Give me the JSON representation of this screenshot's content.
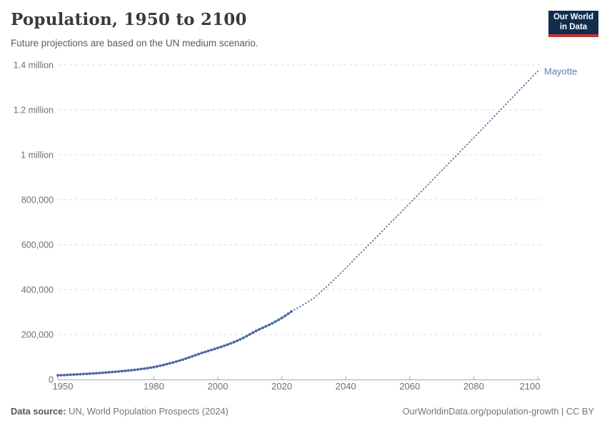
{
  "header": {
    "title": "Population, 1950 to 2100",
    "subtitle": "Future projections are based on the UN medium scenario.",
    "logo": {
      "line1": "Our World",
      "line2": "in Data"
    }
  },
  "footer": {
    "source_label": "Data source:",
    "source_text": "UN, World Population Prospects (2024)",
    "credit": "OurWorldinData.org/population-growth | CC BY"
  },
  "chart_data": {
    "type": "line",
    "title": "Population, 1950 to 2100",
    "subtitle": "Future projections are based on the UN medium scenario.",
    "entity": "Mayotte",
    "xlabel": "",
    "ylabel": "",
    "xlim": [
      1950,
      2100
    ],
    "ylim": [
      0,
      1400000
    ],
    "grid": "dashed-horizontal",
    "legend_position": "end-of-line-label",
    "colors": {
      "line": "#4c6aa0",
      "label": "#5b7db5",
      "grid": "#dedede",
      "axis": "#a9a9a9",
      "axis_text": "#707070"
    },
    "x_axis": {
      "ticks": [
        1950,
        1980,
        2000,
        2020,
        2040,
        2060,
        2080,
        2100
      ]
    },
    "y_axis": {
      "ticks": [
        {
          "value": 0,
          "label": "0"
        },
        {
          "value": 200000,
          "label": "200,000"
        },
        {
          "value": 400000,
          "label": "400,000"
        },
        {
          "value": 600000,
          "label": "600,000"
        },
        {
          "value": 800000,
          "label": "800,000"
        },
        {
          "value": 1000000,
          "label": "1 million"
        },
        {
          "value": 1200000,
          "label": "1.2 million"
        },
        {
          "value": 1400000,
          "label": "1.4 million"
        }
      ]
    },
    "end_label": {
      "text": "Mayotte",
      "value": 1372000
    },
    "series": [
      {
        "name": "Mayotte (observed)",
        "style": "solid",
        "markers": true,
        "points": [
          [
            1950,
            18500
          ],
          [
            1951,
            19100
          ],
          [
            1952,
            19800
          ],
          [
            1953,
            20500
          ],
          [
            1954,
            21200
          ],
          [
            1955,
            22000
          ],
          [
            1956,
            22700
          ],
          [
            1957,
            23500
          ],
          [
            1958,
            24300
          ],
          [
            1959,
            25100
          ],
          [
            1960,
            26000
          ],
          [
            1961,
            26900
          ],
          [
            1962,
            27900
          ],
          [
            1963,
            28900
          ],
          [
            1964,
            29900
          ],
          [
            1965,
            31000
          ],
          [
            1966,
            32100
          ],
          [
            1967,
            33300
          ],
          [
            1968,
            34500
          ],
          [
            1969,
            35700
          ],
          [
            1970,
            37000
          ],
          [
            1971,
            38400
          ],
          [
            1972,
            39800
          ],
          [
            1973,
            41300
          ],
          [
            1974,
            42900
          ],
          [
            1975,
            44500
          ],
          [
            1976,
            46400
          ],
          [
            1977,
            48400
          ],
          [
            1978,
            50500
          ],
          [
            1979,
            52700
          ],
          [
            1980,
            55000
          ],
          [
            1981,
            58000
          ],
          [
            1982,
            61200
          ],
          [
            1983,
            64600
          ],
          [
            1984,
            68200
          ],
          [
            1985,
            72000
          ],
          [
            1986,
            75800
          ],
          [
            1987,
            79800
          ],
          [
            1988,
            84000
          ],
          [
            1989,
            88400
          ],
          [
            1990,
            93000
          ],
          [
            1991,
            97800
          ],
          [
            1992,
            102800
          ],
          [
            1993,
            107900
          ],
          [
            1994,
            113000
          ],
          [
            1995,
            118000
          ],
          [
            1996,
            122500
          ],
          [
            1997,
            127000
          ],
          [
            1998,
            131500
          ],
          [
            1999,
            136000
          ],
          [
            2000,
            140500
          ],
          [
            2001,
            145000
          ],
          [
            2002,
            150000
          ],
          [
            2003,
            155000
          ],
          [
            2004,
            160500
          ],
          [
            2005,
            166000
          ],
          [
            2006,
            172000
          ],
          [
            2007,
            178500
          ],
          [
            2008,
            185500
          ],
          [
            2009,
            193000
          ],
          [
            2010,
            201000
          ],
          [
            2011,
            209000
          ],
          [
            2012,
            216500
          ],
          [
            2013,
            223500
          ],
          [
            2014,
            230000
          ],
          [
            2015,
            236500
          ],
          [
            2016,
            243000
          ],
          [
            2017,
            250000
          ],
          [
            2018,
            257500
          ],
          [
            2019,
            265500
          ],
          [
            2020,
            274000
          ],
          [
            2021,
            283000
          ],
          [
            2022,
            292500
          ],
          [
            2023,
            302500
          ]
        ]
      },
      {
        "name": "Mayotte (UN medium projection)",
        "style": "dotted",
        "markers": false,
        "points": [
          [
            2023,
            302500
          ],
          [
            2025,
            318000
          ],
          [
            2030,
            362000
          ],
          [
            2035,
            425000
          ],
          [
            2040,
            496000
          ],
          [
            2045,
            568000
          ],
          [
            2050,
            640000
          ],
          [
            2055,
            712000
          ],
          [
            2060,
            784000
          ],
          [
            2065,
            857000
          ],
          [
            2070,
            930000
          ],
          [
            2075,
            1003000
          ],
          [
            2080,
            1076000
          ],
          [
            2085,
            1150000
          ],
          [
            2090,
            1224000
          ],
          [
            2095,
            1298000
          ],
          [
            2100,
            1372000
          ]
        ]
      }
    ]
  }
}
